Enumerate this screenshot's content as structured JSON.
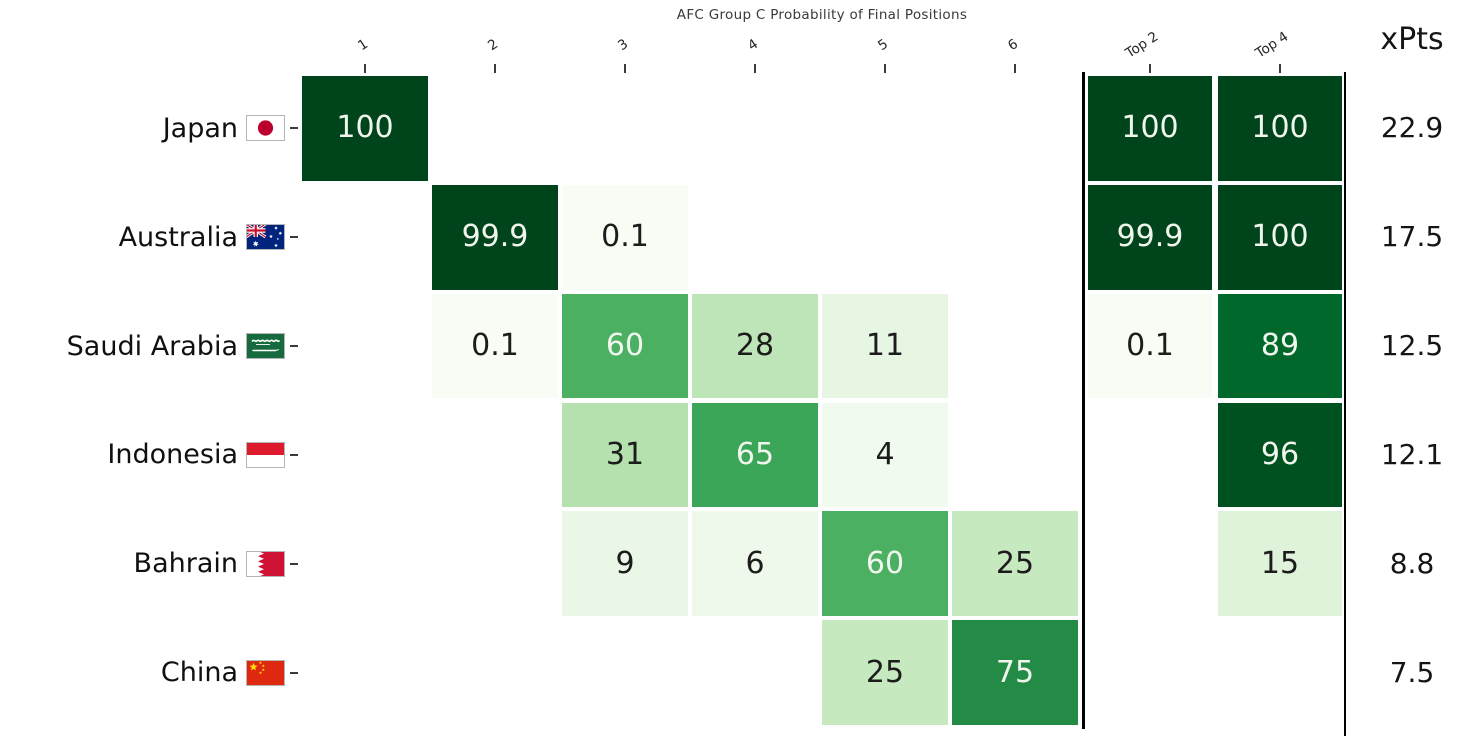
{
  "chart_data": {
    "type": "heatmap",
    "title": "AFC Group C Probability of Final Positions",
    "xpts_label": "xPts",
    "value_unit": "percent-probability",
    "columns": [
      "1",
      "2",
      "3",
      "4",
      "5",
      "6",
      "Top 2",
      "Top 4"
    ],
    "rows": [
      {
        "team": "Japan",
        "flag": "japan",
        "cells": [
          100,
          null,
          null,
          null,
          null,
          null,
          100,
          100
        ],
        "xpts": "22.9"
      },
      {
        "team": "Australia",
        "flag": "australia",
        "cells": [
          null,
          99.9,
          0.1,
          null,
          null,
          null,
          99.9,
          100
        ],
        "xpts": "17.5"
      },
      {
        "team": "Saudi Arabia",
        "flag": "saudi-arabia",
        "cells": [
          null,
          0.1,
          60,
          28,
          11,
          null,
          0.1,
          89
        ],
        "xpts": "12.5"
      },
      {
        "team": "Indonesia",
        "flag": "indonesia",
        "cells": [
          null,
          null,
          31,
          65,
          4,
          null,
          null,
          96
        ],
        "xpts": "12.1"
      },
      {
        "team": "Bahrain",
        "flag": "bahrain",
        "cells": [
          null,
          null,
          9,
          6,
          60,
          25,
          null,
          15
        ],
        "xpts": "8.8"
      },
      {
        "team": "China",
        "flag": "china",
        "cells": [
          null,
          null,
          null,
          null,
          25,
          75,
          null,
          null
        ],
        "xpts": "7.5"
      }
    ],
    "colormap": {
      "name": "Greens",
      "anchors": [
        {
          "t": 0.0,
          "hex": "#f7fcf5"
        },
        {
          "t": 0.125,
          "hex": "#e5f5e0"
        },
        {
          "t": 0.25,
          "hex": "#c7e9c0"
        },
        {
          "t": 0.375,
          "hex": "#a1d99b"
        },
        {
          "t": 0.5,
          "hex": "#74c476"
        },
        {
          "t": 0.625,
          "hex": "#41ab5d"
        },
        {
          "t": 0.75,
          "hex": "#238b45"
        },
        {
          "t": 0.875,
          "hex": "#006d2c"
        },
        {
          "t": 1.0,
          "hex": "#00441b"
        }
      ]
    },
    "colors": {
      "cell_text_light": "#f0f6ee",
      "cell_text_dark": "#1c1c1c",
      "separator_line": "#000000",
      "title_text": "#3a3a3a",
      "header_text": "#252525",
      "team_text": "#101010",
      "xpts_text": "#151515",
      "tick": "#3a3a3a"
    },
    "flag_colors": {
      "japan": {
        "field": "#ffffff",
        "disc": "#bc002d"
      },
      "australia": {
        "field": "#00247d",
        "jack_red": "#c8102e",
        "star": "#ffffff"
      },
      "saudi-arabia": {
        "field": "#156b3d",
        "script": "#ffffff"
      },
      "indonesia": {
        "top": "#dd1b2c",
        "bottom": "#ffffff"
      },
      "bahrain": {
        "field": "#ffffff",
        "serration": "#ce1233"
      },
      "china": {
        "field": "#de2910",
        "star": "#ffde00"
      }
    }
  }
}
